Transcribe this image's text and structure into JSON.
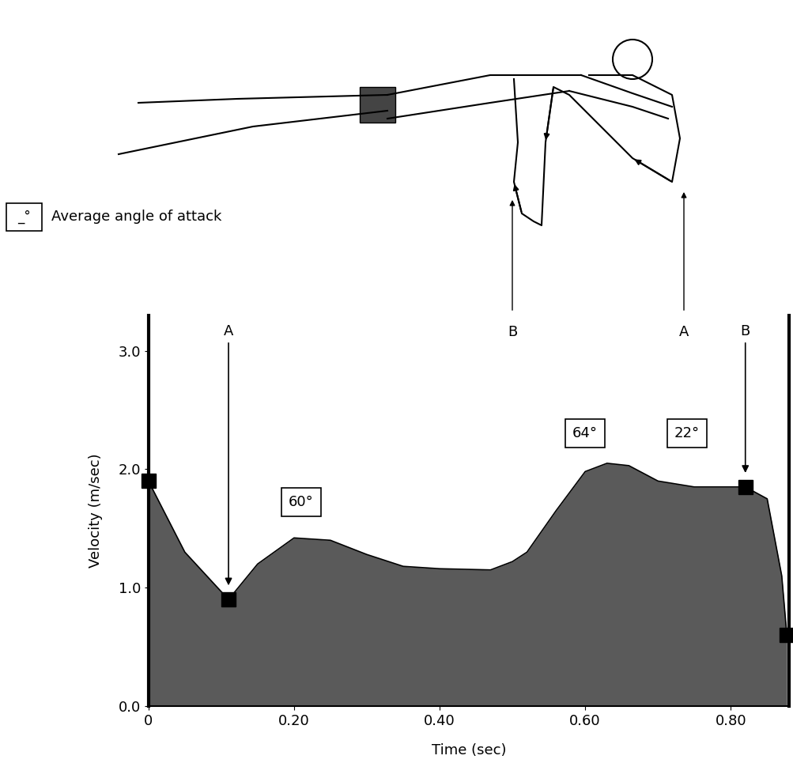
{
  "chart_data": {
    "type": "area",
    "xlabel": "Time (sec)",
    "ylabel": "Velocity (m/sec)",
    "x": [
      0,
      0.05,
      0.11,
      0.15,
      0.2,
      0.25,
      0.3,
      0.35,
      0.4,
      0.47,
      0.5,
      0.52,
      0.56,
      0.6,
      0.63,
      0.66,
      0.7,
      0.75,
      0.8,
      0.82,
      0.85,
      0.87,
      0.877
    ],
    "values": [
      1.9,
      1.3,
      0.9,
      1.2,
      1.42,
      1.4,
      1.28,
      1.18,
      1.16,
      1.15,
      1.22,
      1.3,
      1.65,
      1.98,
      2.05,
      2.03,
      1.9,
      1.85,
      1.85,
      1.85,
      1.75,
      1.1,
      0.6
    ],
    "color": "#5a5a5a",
    "xlim": [
      0,
      0.88
    ],
    "xticks": [
      {
        "value": 0,
        "label": "0"
      },
      {
        "value": 0.2,
        "label": "0.20"
      },
      {
        "value": 0.4,
        "label": "0.40"
      },
      {
        "value": 0.6,
        "label": "0.60"
      },
      {
        "value": 0.8,
        "label": "0.80"
      }
    ],
    "ylim": [
      0,
      3.3
    ],
    "yticks": [
      {
        "value": 0,
        "label": "0.0"
      },
      {
        "value": 1,
        "label": "1.0"
      },
      {
        "value": 2,
        "label": "2.0"
      },
      {
        "value": 3,
        "label": "3.0"
      }
    ],
    "phase_markers": [
      {
        "label": "A",
        "x": 0.11,
        "y": 0.9
      },
      {
        "label": "B",
        "x": 0.82,
        "y": 1.85
      }
    ],
    "points": [
      {
        "x": 0,
        "y": 1.9
      },
      {
        "x": 0.877,
        "y": 0.6
      }
    ],
    "angle_labels": [
      {
        "text": "60°",
        "x": 0.21,
        "y": 1.72
      },
      {
        "text": "64°",
        "x": 0.6,
        "y": 2.3
      },
      {
        "text": "22°",
        "x": 0.74,
        "y": 2.3
      }
    ],
    "key": {
      "symbol": "_°",
      "label": "Average angle of attack"
    },
    "illustration_labels": [
      "B",
      "A"
    ]
  }
}
